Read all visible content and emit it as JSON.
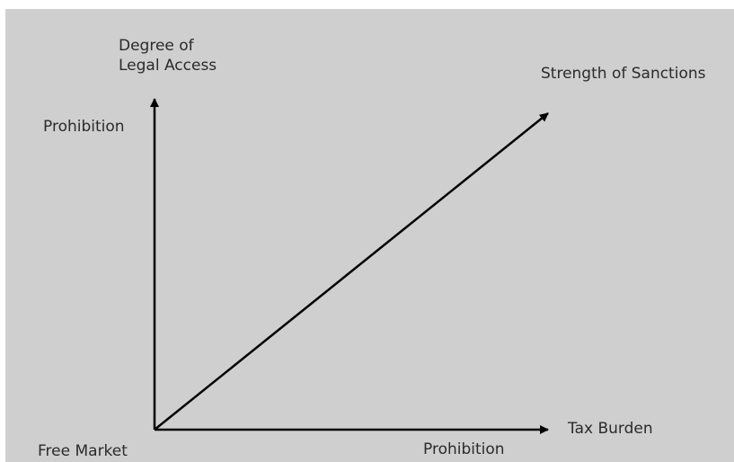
{
  "diagram": {
    "y_axis_title": "Degree of\nLegal Access",
    "y_axis_top_label": "Prohibition",
    "diagonal_axis_label": "Strength of Sanctions",
    "x_axis_title": "Tax Burden",
    "x_axis_end_label": "Prohibition",
    "origin_label": "Free Market",
    "colors": {
      "background": "#cfcfd0",
      "stroke": "#000000",
      "text": "#2b2b2b"
    }
  }
}
